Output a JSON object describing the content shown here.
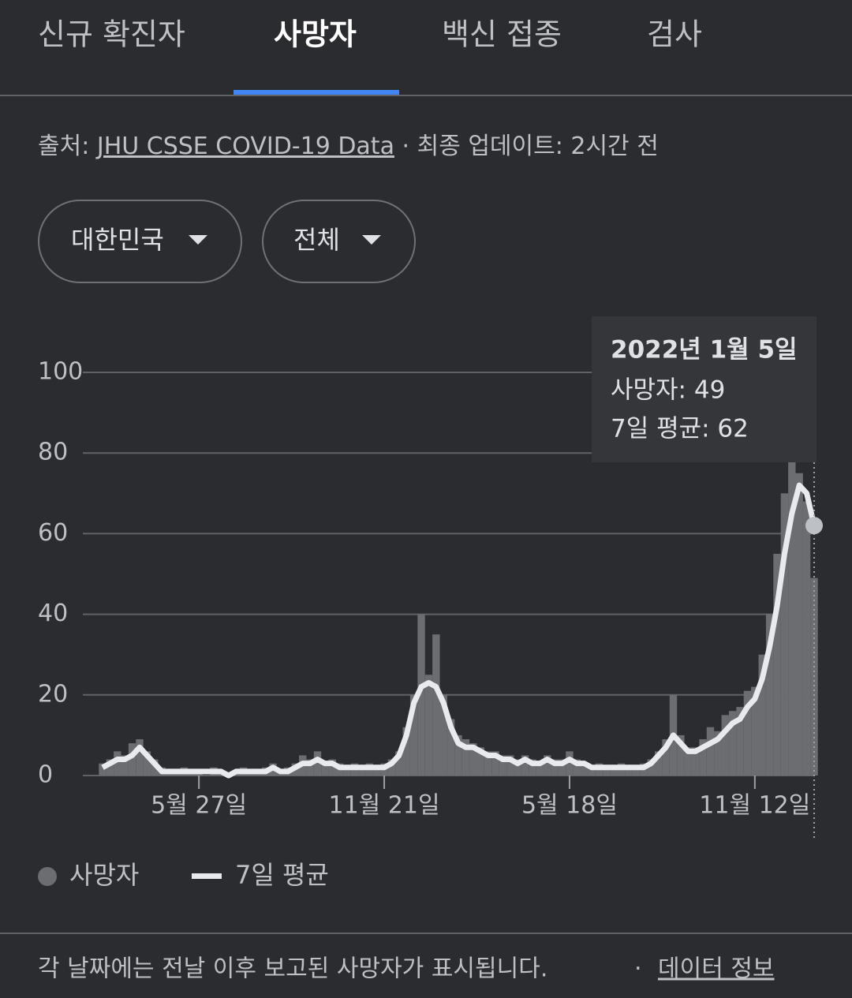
{
  "tabs": [
    "신규 확진자",
    "사망자",
    "백신 접종",
    "검사"
  ],
  "source": {
    "label": "출처:",
    "link": "JHU CSSE COVID-19 Data",
    "updated": "· 최종 업데이트: 2시간 전"
  },
  "filters": [
    "대한민국",
    "전체"
  ],
  "chart_data": {
    "type": "bar",
    "categories": [
      null,
      null,
      null,
      null,
      null,
      null,
      null,
      null,
      null,
      null,
      null,
      null,
      null,
      "5월 27일",
      null,
      null,
      null,
      null,
      null,
      null,
      null,
      null,
      null,
      null,
      null,
      null,
      null,
      null,
      null,
      null,
      null,
      null,
      null,
      null,
      null,
      null,
      null,
      null,
      "11월 21일",
      null,
      null,
      null,
      null,
      null,
      null,
      null,
      null,
      null,
      null,
      null,
      null,
      null,
      null,
      null,
      null,
      null,
      null,
      null,
      null,
      null,
      null,
      null,
      null,
      "5월 18일",
      null,
      null,
      null,
      null,
      null,
      null,
      null,
      null,
      null,
      null,
      null,
      null,
      null,
      null,
      null,
      null,
      null,
      null,
      null,
      null,
      null,
      null,
      null,
      null,
      "11월 12일",
      null,
      null,
      null,
      null,
      null,
      null,
      null,
      null
    ],
    "series": [
      {
        "name": "사망자",
        "color": "#6b6d71",
        "type": "bar",
        "values": [
          3,
          4,
          6,
          5,
          8,
          9,
          6,
          4,
          2,
          1,
          1,
          2,
          1,
          1,
          0,
          2,
          1,
          0,
          1,
          2,
          1,
          1,
          2,
          3,
          1,
          2,
          3,
          5,
          4,
          6,
          3,
          4,
          3,
          2,
          3,
          2,
          3,
          2,
          3,
          4,
          6,
          12,
          20,
          40,
          25,
          35,
          20,
          14,
          10,
          9,
          8,
          7,
          6,
          6,
          5,
          5,
          4,
          5,
          4,
          3,
          5,
          4,
          4,
          6,
          4,
          3,
          2,
          3,
          2,
          2,
          3,
          2,
          2,
          3,
          4,
          6,
          9,
          20,
          10,
          7,
          7,
          9,
          12,
          11,
          15,
          16,
          17,
          21,
          22,
          30,
          40,
          55,
          70,
          80,
          75,
          68,
          49
        ]
      },
      {
        "name": "7일 평균",
        "color": "#e8eaed",
        "type": "line",
        "values": [
          2,
          3,
          4,
          4,
          5,
          7,
          5,
          3,
          1,
          1,
          1,
          1,
          1,
          1,
          1,
          1,
          1,
          0,
          1,
          1,
          1,
          1,
          1,
          2,
          1,
          1,
          2,
          3,
          3,
          4,
          3,
          3,
          2,
          2,
          2,
          2,
          2,
          2,
          2,
          3,
          5,
          10,
          18,
          22,
          23,
          22,
          18,
          12,
          8,
          7,
          7,
          6,
          5,
          5,
          4,
          4,
          3,
          4,
          3,
          3,
          4,
          3,
          3,
          4,
          3,
          3,
          2,
          2,
          2,
          2,
          2,
          2,
          2,
          2,
          3,
          5,
          7,
          10,
          8,
          6,
          6,
          7,
          8,
          9,
          11,
          13,
          14,
          17,
          19,
          24,
          32,
          42,
          55,
          65,
          72,
          70,
          62
        ]
      }
    ],
    "ylim": [
      0,
      100
    ],
    "yticks": [
      0,
      20,
      40,
      60,
      80,
      100
    ],
    "grid": true,
    "tooltip": {
      "title": "2022년 1월 5일",
      "lines": [
        "사망자: 49",
        "7일 평균: 62"
      ]
    }
  },
  "footer": {
    "note": "각 날짜에는 전날 이후 보고된 사망자가 표시됩니다.",
    "separator": "·",
    "link": "데이터 정보"
  }
}
